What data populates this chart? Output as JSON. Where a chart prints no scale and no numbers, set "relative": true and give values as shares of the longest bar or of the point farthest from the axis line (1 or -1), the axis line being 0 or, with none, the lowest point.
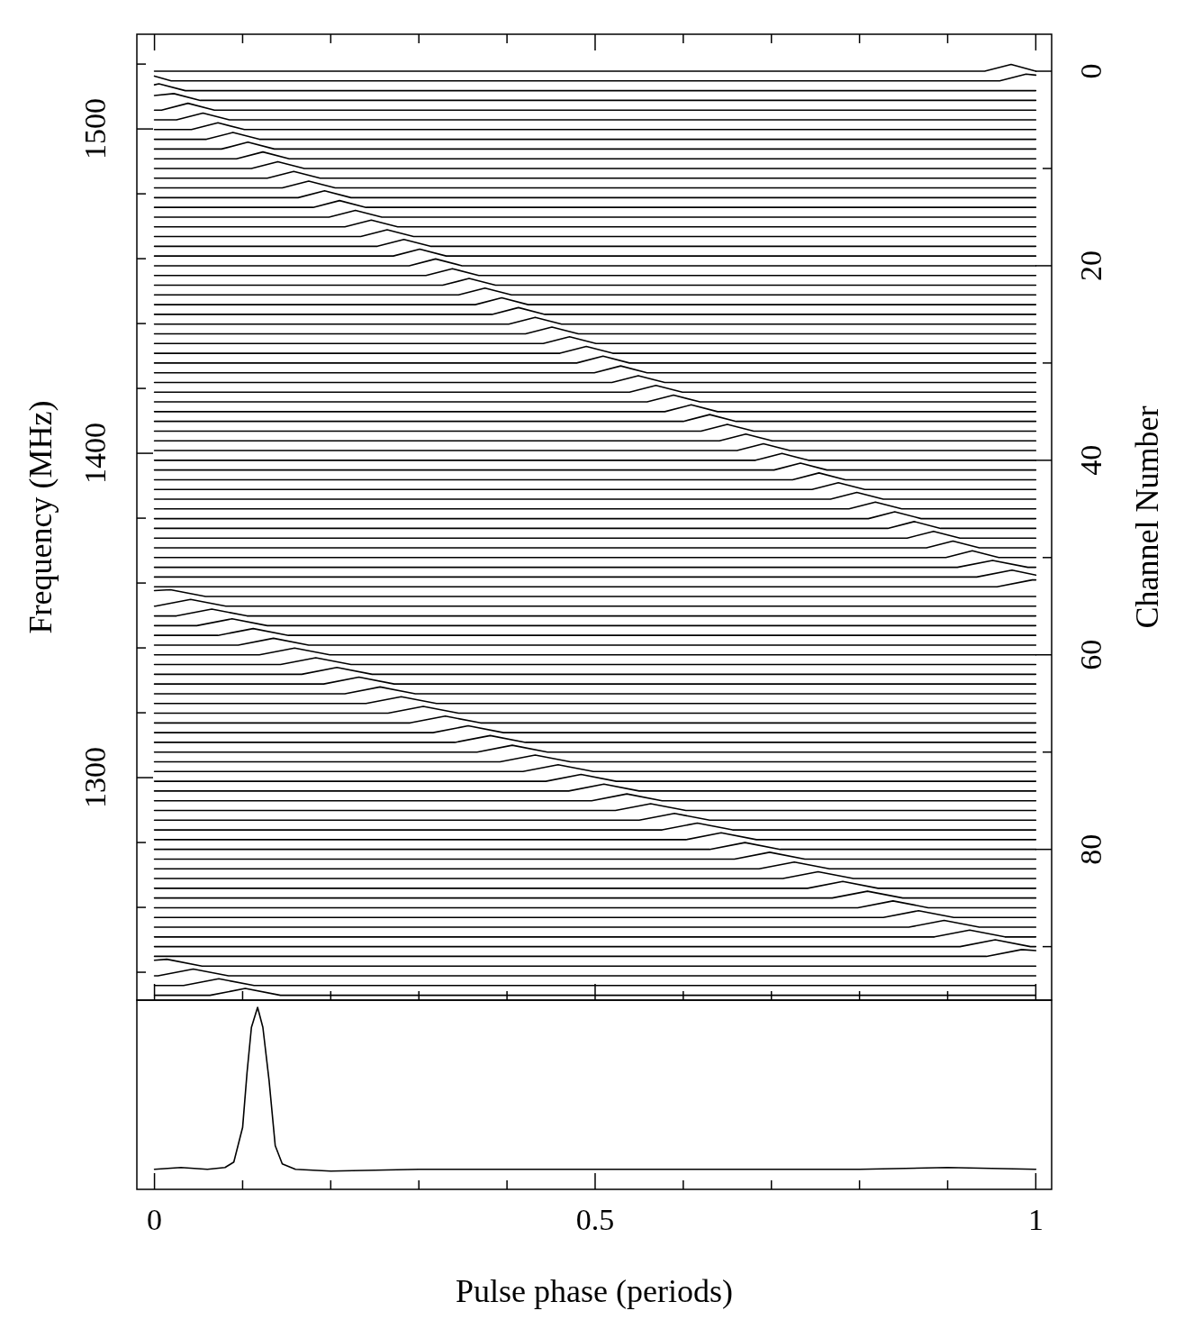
{
  "chart_data": [
    {
      "type": "line",
      "ylabel": "Frequency (MHz)",
      "y2label": "Channel Number",
      "color": "#000000",
      "xlim": [
        -0.02,
        1.018
      ],
      "tick_labels": "y",
      "xticks": [
        0,
        {
          "value": 0.1,
          "label": null
        },
        {
          "value": 0.2,
          "label": null
        },
        {
          "value": 0.3,
          "label": null
        },
        {
          "value": 0.4,
          "label": null
        },
        0.5,
        {
          "value": 0.6,
          "label": null
        },
        {
          "value": 0.7,
          "label": null
        },
        {
          "value": 0.8,
          "label": null
        },
        {
          "value": 0.9,
          "label": null
        },
        1
      ],
      "ylim": [
        1231.4,
        1529.2
      ],
      "yticks": [
        {
          "value": 1240,
          "label": null
        },
        {
          "value": 1260,
          "label": null
        },
        {
          "value": 1280,
          "label": null
        },
        1300,
        {
          "value": 1320,
          "label": null
        },
        {
          "value": 1340,
          "label": null
        },
        {
          "value": 1360,
          "label": null
        },
        {
          "value": 1380,
          "label": null
        },
        1400,
        {
          "value": 1420,
          "label": null
        },
        {
          "value": 1440,
          "label": null
        },
        {
          "value": 1460,
          "label": null
        },
        {
          "value": 1480,
          "label": null
        },
        1500,
        {
          "value": 1520,
          "label": null
        }
      ],
      "y2lim": [
        95.5,
        -3.8
      ],
      "y2ticks": [
        0,
        {
          "value": 10,
          "label": null
        },
        20,
        {
          "value": 30,
          "label": null
        },
        40,
        {
          "value": 50,
          "label": null
        },
        60,
        {
          "value": 70,
          "label": null
        },
        80,
        {
          "value": 90,
          "label": null
        }
      ],
      "series": [
        {
          "axis": "y2",
          "x": [
            0,
            0.942,
            0.972,
            1
          ],
          "values": [
            0,
            0,
            -0.7,
            0
          ]
        },
        {
          "axis": "y2",
          "x": [
            0,
            0.019,
            0.959,
            0.989,
            1
          ],
          "values": [
            0.5,
            1,
            1,
            0.3,
            0.4
          ]
        },
        {
          "axis": "y2",
          "x": [
            0,
            0.005,
            0.035,
            1
          ],
          "values": [
            1.4,
            1.3,
            2,
            2
          ]
        },
        {
          "axis": "y2",
          "x": [
            0,
            0.022,
            0.052,
            1
          ],
          "values": [
            2.5,
            2.3,
            3,
            3
          ]
        },
        {
          "axis": "y2",
          "x": [
            0,
            0.008,
            0.038,
            0.068,
            1
          ],
          "values": [
            4,
            4,
            3.3,
            4,
            4
          ]
        },
        {
          "axis": "y2",
          "x": [
            0,
            0.025,
            0.055,
            0.085,
            1
          ],
          "values": [
            5,
            5,
            4.3,
            5,
            5
          ]
        },
        {
          "axis": "y2",
          "x": [
            0,
            0.042,
            0.072,
            0.102,
            1
          ],
          "values": [
            6,
            6,
            5.3,
            6,
            6
          ]
        },
        {
          "axis": "y2",
          "x": [
            0,
            0.059,
            0.089,
            0.119,
            1
          ],
          "values": [
            7,
            7,
            6.3,
            7,
            7
          ]
        },
        {
          "axis": "y2",
          "x": [
            0,
            0.076,
            0.106,
            0.136,
            1
          ],
          "values": [
            8,
            8,
            7.3,
            8,
            8
          ]
        },
        {
          "axis": "y2",
          "x": [
            0,
            0.093,
            0.123,
            0.153,
            1
          ],
          "values": [
            9,
            9,
            8.3,
            9,
            9
          ]
        },
        {
          "axis": "y2",
          "x": [
            0,
            0.11,
            0.14,
            0.17,
            1
          ],
          "values": [
            10,
            10,
            9.3,
            10,
            10
          ]
        },
        {
          "axis": "y2",
          "x": [
            0,
            0.128,
            0.158,
            0.188,
            1
          ],
          "values": [
            11,
            11,
            10.3,
            11,
            11
          ]
        },
        {
          "axis": "y2",
          "x": [
            0,
            0.145,
            0.175,
            0.205,
            1
          ],
          "values": [
            12,
            12,
            11.3,
            12,
            12
          ]
        },
        {
          "axis": "y2",
          "x": [
            0,
            0.163,
            0.193,
            0.223,
            1
          ],
          "values": [
            13,
            13,
            12.3,
            13,
            13
          ]
        },
        {
          "axis": "y2",
          "x": [
            0,
            0.18,
            0.21,
            0.24,
            1
          ],
          "values": [
            14,
            14,
            13.3,
            14,
            14
          ]
        },
        {
          "axis": "y2",
          "x": [
            0,
            0.198,
            0.228,
            0.258,
            1
          ],
          "values": [
            15,
            15,
            14.3,
            15,
            15
          ]
        },
        {
          "axis": "y2",
          "x": [
            0,
            0.216,
            0.246,
            0.276,
            1
          ],
          "values": [
            16,
            16,
            15.3,
            16,
            16
          ]
        },
        {
          "axis": "y2",
          "x": [
            0,
            0.234,
            0.264,
            0.294,
            1
          ],
          "values": [
            17,
            17,
            16.3,
            17,
            17
          ]
        },
        {
          "axis": "y2",
          "x": [
            0,
            0.253,
            0.283,
            0.313,
            1
          ],
          "values": [
            18,
            18,
            17.3,
            18,
            18
          ]
        },
        {
          "axis": "y2",
          "x": [
            0,
            0.271,
            0.301,
            0.331,
            1
          ],
          "values": [
            19,
            19,
            18.3,
            19,
            19
          ]
        },
        {
          "axis": "y2",
          "x": [
            0,
            0.289,
            0.319,
            0.349,
            1
          ],
          "values": [
            20,
            20,
            19.3,
            20,
            20
          ]
        },
        {
          "axis": "y2",
          "x": [
            0,
            0.308,
            0.338,
            0.368,
            1
          ],
          "values": [
            21,
            21,
            20.3,
            21,
            21
          ]
        },
        {
          "axis": "y2",
          "x": [
            0,
            0.327,
            0.357,
            0.387,
            1
          ],
          "values": [
            22,
            22,
            21.3,
            22,
            22
          ]
        },
        {
          "axis": "y2",
          "x": [
            0,
            0.345,
            0.375,
            0.405,
            1
          ],
          "values": [
            23,
            23,
            22.3,
            23,
            23
          ]
        },
        {
          "axis": "y2",
          "x": [
            0,
            0.364,
            0.394,
            0.424,
            1
          ],
          "values": [
            24,
            24,
            23.3,
            24,
            24
          ]
        },
        {
          "axis": "y2",
          "x": [
            0,
            0.383,
            0.413,
            0.443,
            1
          ],
          "values": [
            25,
            25,
            24.3,
            25,
            25
          ]
        },
        {
          "axis": "y2",
          "x": [
            0,
            0.402,
            0.432,
            0.462,
            1
          ],
          "values": [
            26,
            26,
            25.3,
            26,
            26
          ]
        },
        {
          "axis": "y2",
          "x": [
            0,
            0.421,
            0.451,
            0.481,
            1
          ],
          "values": [
            27,
            27,
            26.3,
            27,
            27
          ]
        },
        {
          "axis": "y2",
          "x": [
            0,
            0.441,
            0.471,
            0.501,
            1
          ],
          "values": [
            28,
            28,
            27.3,
            28,
            28
          ]
        },
        {
          "axis": "y2",
          "x": [
            0,
            0.46,
            0.49,
            0.52,
            1
          ],
          "values": [
            29,
            29,
            28.3,
            29,
            29
          ]
        },
        {
          "axis": "y2",
          "x": [
            0,
            0.479,
            0.509,
            0.539,
            1
          ],
          "values": [
            30,
            30,
            29.3,
            30,
            30
          ]
        },
        {
          "axis": "y2",
          "x": [
            0,
            0.499,
            0.529,
            0.559,
            1
          ],
          "values": [
            31,
            31,
            30.3,
            31,
            31
          ]
        },
        {
          "axis": "y2",
          "x": [
            0,
            0.519,
            0.549,
            0.579,
            1
          ],
          "values": [
            32,
            32,
            31.3,
            32,
            32
          ]
        },
        {
          "axis": "y2",
          "x": [
            0,
            0.539,
            0.569,
            0.599,
            1
          ],
          "values": [
            33,
            33,
            32.3,
            33,
            33
          ]
        },
        {
          "axis": "y2",
          "x": [
            0,
            0.559,
            0.589,
            0.619,
            1
          ],
          "values": [
            34,
            34,
            33.3,
            34,
            34
          ]
        },
        {
          "axis": "y2",
          "x": [
            0,
            0.579,
            0.609,
            0.639,
            1
          ],
          "values": [
            35,
            35,
            34.3,
            35,
            35
          ]
        },
        {
          "axis": "y2",
          "x": [
            0,
            0.6,
            0.63,
            0.66,
            1
          ],
          "values": [
            36,
            36,
            35.3,
            36,
            36
          ]
        },
        {
          "axis": "y2",
          "x": [
            0,
            0.62,
            0.65,
            0.68,
            1
          ],
          "values": [
            37,
            37,
            36.3,
            37,
            37
          ]
        },
        {
          "axis": "y2",
          "x": [
            0,
            0.641,
            0.671,
            0.701,
            1
          ],
          "values": [
            38,
            38,
            37.3,
            38,
            38
          ]
        },
        {
          "axis": "y2",
          "x": [
            0,
            0.661,
            0.691,
            0.721,
            1
          ],
          "values": [
            39,
            39,
            38.3,
            39,
            39
          ]
        },
        {
          "axis": "y2",
          "x": [
            0,
            0.682,
            0.712,
            0.742,
            1
          ],
          "values": [
            40,
            40,
            39.3,
            40,
            40
          ]
        },
        {
          "axis": "y2",
          "x": [
            0,
            0.703,
            0.733,
            0.763,
            1
          ],
          "values": [
            41,
            41,
            40.3,
            41,
            41
          ]
        },
        {
          "axis": "y2",
          "x": [
            0,
            0.724,
            0.754,
            0.784,
            1
          ],
          "values": [
            42,
            42,
            41.3,
            42,
            42
          ]
        },
        {
          "axis": "y2",
          "x": [
            0,
            0.746,
            0.776,
            0.806,
            1
          ],
          "values": [
            43,
            43,
            42.3,
            43,
            43
          ]
        },
        {
          "axis": "y2",
          "x": [
            0,
            0.767,
            0.797,
            0.827,
            1
          ],
          "values": [
            44,
            44,
            43.3,
            44,
            44
          ]
        },
        {
          "axis": "y2",
          "x": [
            0,
            0.788,
            0.818,
            0.848,
            1
          ],
          "values": [
            45,
            45,
            44.3,
            45,
            45
          ]
        },
        {
          "axis": "y2",
          "x": [
            0,
            0.81,
            0.84,
            0.87,
            1
          ],
          "values": [
            46,
            46,
            45.3,
            46,
            46
          ]
        },
        {
          "axis": "y2",
          "x": [
            0,
            0.832,
            0.862,
            0.892,
            1
          ],
          "values": [
            47,
            47,
            46.3,
            47,
            47
          ]
        },
        {
          "axis": "y2",
          "x": [
            0,
            0.854,
            0.884,
            0.914,
            1
          ],
          "values": [
            48,
            48,
            47.3,
            48,
            48
          ]
        },
        {
          "axis": "y2",
          "x": [
            0,
            0.876,
            0.906,
            0.936,
            1
          ],
          "values": [
            49,
            49,
            48.3,
            49,
            49
          ]
        },
        {
          "axis": "y2",
          "x": [
            0,
            0.898,
            0.928,
            0.958,
            1
          ],
          "values": [
            50,
            50,
            49.3,
            50,
            50
          ]
        },
        {
          "axis": "y2",
          "x": [
            0,
            0.911,
            0.951,
            0.991,
            1
          ],
          "values": [
            51,
            51,
            50.3,
            51,
            51
          ]
        },
        {
          "axis": "y2",
          "x": [
            0,
            0.933,
            0.973,
            1
          ],
          "values": [
            52,
            52,
            51.3,
            51.8
          ]
        },
        {
          "axis": "y2",
          "x": [
            0,
            0.956,
            0.996,
            1
          ],
          "values": [
            53,
            53,
            52.3,
            52.3
          ]
        },
        {
          "axis": "y2",
          "x": [
            0,
            0.018,
            0.058,
            1
          ],
          "values": [
            53.4,
            53.3,
            54,
            54
          ]
        },
        {
          "axis": "y2",
          "x": [
            0,
            0.001,
            0.041,
            0.081,
            1
          ],
          "values": [
            55,
            55,
            54.3,
            55,
            55
          ]
        },
        {
          "axis": "y2",
          "x": [
            0,
            0.025,
            0.065,
            0.105,
            1
          ],
          "values": [
            56,
            56,
            55.3,
            56,
            56
          ]
        },
        {
          "axis": "y2",
          "x": [
            0,
            0.048,
            0.088,
            0.128,
            1
          ],
          "values": [
            57,
            57,
            56.3,
            57,
            57
          ]
        },
        {
          "axis": "y2",
          "x": [
            0,
            0.072,
            0.112,
            0.152,
            1
          ],
          "values": [
            58,
            58,
            57.3,
            58,
            58
          ]
        },
        {
          "axis": "y2",
          "x": [
            0,
            0.095,
            0.135,
            0.175,
            1
          ],
          "values": [
            59,
            59,
            58.3,
            59,
            59
          ]
        },
        {
          "axis": "y2",
          "x": [
            0,
            0.119,
            0.159,
            0.199,
            1
          ],
          "values": [
            60,
            60,
            59.3,
            60,
            60
          ]
        },
        {
          "axis": "y2",
          "x": [
            0,
            0.143,
            0.183,
            0.223,
            1
          ],
          "values": [
            61,
            61,
            60.3,
            61,
            61
          ]
        },
        {
          "axis": "y2",
          "x": [
            0,
            0.167,
            0.207,
            0.247,
            1
          ],
          "values": [
            62,
            62,
            61.3,
            62,
            62
          ]
        },
        {
          "axis": "y2",
          "x": [
            0,
            0.192,
            0.232,
            0.272,
            1
          ],
          "values": [
            63,
            63,
            62.3,
            63,
            63
          ]
        },
        {
          "axis": "y2",
          "x": [
            0,
            0.216,
            0.256,
            0.296,
            1
          ],
          "values": [
            64,
            64,
            63.3,
            64,
            64
          ]
        },
        {
          "axis": "y2",
          "x": [
            0,
            0.24,
            0.28,
            0.32,
            1
          ],
          "values": [
            65,
            65,
            64.3,
            65,
            65
          ]
        },
        {
          "axis": "y2",
          "x": [
            0,
            0.265,
            0.305,
            0.345,
            1
          ],
          "values": [
            66,
            66,
            65.3,
            66,
            66
          ]
        },
        {
          "axis": "y2",
          "x": [
            0,
            0.29,
            0.33,
            0.37,
            1
          ],
          "values": [
            67,
            67,
            66.3,
            67,
            67
          ]
        },
        {
          "axis": "y2",
          "x": [
            0,
            0.316,
            0.356,
            0.396,
            1
          ],
          "values": [
            68,
            68,
            67.3,
            68,
            68
          ]
        },
        {
          "axis": "y2",
          "x": [
            0,
            0.341,
            0.381,
            0.421,
            1
          ],
          "values": [
            69,
            69,
            68.3,
            69,
            69
          ]
        },
        {
          "axis": "y2",
          "x": [
            0,
            0.366,
            0.406,
            0.446,
            1
          ],
          "values": [
            70,
            70,
            69.3,
            70,
            70
          ]
        },
        {
          "axis": "y2",
          "x": [
            0,
            0.392,
            0.432,
            0.472,
            1
          ],
          "values": [
            71,
            71,
            70.3,
            71,
            71
          ]
        },
        {
          "axis": "y2",
          "x": [
            0,
            0.418,
            0.458,
            0.498,
            1
          ],
          "values": [
            72,
            72,
            71.3,
            72,
            72
          ]
        },
        {
          "axis": "y2",
          "x": [
            0,
            0.444,
            0.484,
            0.524,
            1
          ],
          "values": [
            73,
            73,
            72.3,
            73,
            73
          ]
        },
        {
          "axis": "y2",
          "x": [
            0,
            0.47,
            0.51,
            0.55,
            1
          ],
          "values": [
            74,
            74,
            73.3,
            74,
            74
          ]
        },
        {
          "axis": "y2",
          "x": [
            0,
            0.496,
            0.536,
            0.576,
            1
          ],
          "values": [
            75,
            75,
            74.3,
            75,
            75
          ]
        },
        {
          "axis": "y2",
          "x": [
            0,
            0.523,
            0.563,
            0.603,
            1
          ],
          "values": [
            76,
            76,
            75.3,
            76,
            76
          ]
        },
        {
          "axis": "y2",
          "x": [
            0,
            0.55,
            0.59,
            0.63,
            1
          ],
          "values": [
            77,
            77,
            76.3,
            77,
            77
          ]
        },
        {
          "axis": "y2",
          "x": [
            0,
            0.576,
            0.616,
            0.656,
            1
          ],
          "values": [
            78,
            78,
            77.3,
            78,
            78
          ]
        },
        {
          "axis": "y2",
          "x": [
            0,
            0.603,
            0.643,
            0.683,
            1
          ],
          "values": [
            79,
            79,
            78.3,
            79,
            79
          ]
        },
        {
          "axis": "y2",
          "x": [
            0,
            0.63,
            0.67,
            0.71,
            1
          ],
          "values": [
            80,
            80,
            79.3,
            80,
            80
          ]
        },
        {
          "axis": "y2",
          "x": [
            0,
            0.658,
            0.698,
            0.738,
            1
          ],
          "values": [
            81,
            81,
            80.3,
            81,
            81
          ]
        },
        {
          "axis": "y2",
          "x": [
            0,
            0.686,
            0.726,
            0.766,
            1
          ],
          "values": [
            82,
            82,
            81.3,
            82,
            82
          ]
        },
        {
          "axis": "y2",
          "x": [
            0,
            0.713,
            0.753,
            0.793,
            1
          ],
          "values": [
            83,
            83,
            82.3,
            83,
            83
          ]
        },
        {
          "axis": "y2",
          "x": [
            0,
            0.741,
            0.781,
            0.821,
            1
          ],
          "values": [
            84,
            84,
            83.3,
            84,
            84
          ]
        },
        {
          "axis": "y2",
          "x": [
            0,
            0.769,
            0.809,
            0.849,
            1
          ],
          "values": [
            85,
            85,
            84.3,
            85,
            85
          ]
        },
        {
          "axis": "y2",
          "x": [
            0,
            0.798,
            0.838,
            0.878,
            1
          ],
          "values": [
            86,
            86,
            85.3,
            86,
            86
          ]
        },
        {
          "axis": "y2",
          "x": [
            0,
            0.827,
            0.867,
            0.907,
            1
          ],
          "values": [
            87,
            87,
            86.3,
            87,
            87
          ]
        },
        {
          "axis": "y2",
          "x": [
            0,
            0.856,
            0.896,
            0.936,
            1
          ],
          "values": [
            88,
            88,
            87.3,
            88,
            88
          ]
        },
        {
          "axis": "y2",
          "x": [
            0,
            0.885,
            0.925,
            0.965,
            1
          ],
          "values": [
            89,
            89,
            88.3,
            89,
            89
          ]
        },
        {
          "axis": "y2",
          "x": [
            0,
            0.914,
            0.954,
            0.994,
            1
          ],
          "values": [
            90,
            90,
            89.3,
            90,
            90
          ]
        },
        {
          "axis": "y2",
          "x": [
            0,
            0.944,
            0.984,
            1
          ],
          "values": [
            91,
            91,
            90.3,
            90.4
          ]
        },
        {
          "axis": "y2",
          "x": [
            0,
            0.014,
            0.054,
            1
          ],
          "values": [
            91.4,
            91.3,
            92,
            92
          ]
        },
        {
          "axis": "y2",
          "x": [
            0,
            0.004,
            0.044,
            0.084,
            1
          ],
          "values": [
            93,
            93,
            92.3,
            93,
            93
          ]
        },
        {
          "axis": "y2",
          "x": [
            0,
            0.033,
            0.073,
            0.113,
            1
          ],
          "values": [
            94,
            94,
            93.3,
            94,
            94
          ]
        },
        {
          "axis": "y2",
          "x": [
            0,
            0.063,
            0.103,
            0.143,
            1
          ],
          "values": [
            95,
            95,
            94.3,
            95,
            95
          ]
        }
      ]
    },
    {
      "type": "line",
      "relative": true,
      "xlabel": "Pulse phase (periods)",
      "color": "#000000",
      "xlim": [
        -0.02,
        1.018
      ],
      "xticks": [
        0,
        {
          "value": 0.1,
          "label": null
        },
        {
          "value": 0.2,
          "label": null
        },
        {
          "value": 0.3,
          "label": null
        },
        {
          "value": 0.4,
          "label": null
        },
        0.5,
        {
          "value": 0.6,
          "label": null
        },
        {
          "value": 0.7,
          "label": null
        },
        {
          "value": 0.8,
          "label": null
        },
        {
          "value": 0.9,
          "label": null
        },
        1
      ],
      "series": [
        {
          "x": [
            0,
            0.03,
            0.06,
            0.08,
            0.09,
            0.1,
            0.105,
            0.11,
            0.117,
            0.123,
            0.13,
            0.137,
            0.145,
            0.16,
            0.2,
            0.3,
            0.4,
            0.5,
            0.6,
            0.7,
            0.8,
            0.9,
            1
          ],
          "values": [
            0.11,
            0.12,
            0.11,
            0.12,
            0.15,
            0.34,
            0.64,
            0.89,
            1,
            0.89,
            0.6,
            0.24,
            0.14,
            0.11,
            0.1,
            0.11,
            0.11,
            0.11,
            0.11,
            0.11,
            0.11,
            0.12,
            0.11
          ]
        }
      ]
    }
  ]
}
